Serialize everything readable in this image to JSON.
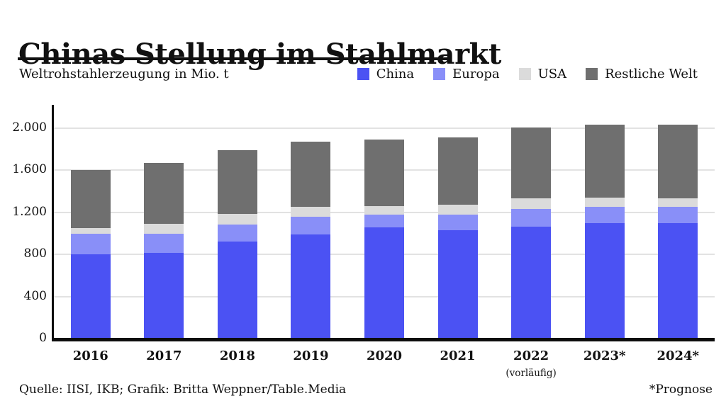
{
  "header": {
    "title": "Chinas Stellung im Stahlmarkt",
    "subtitle": "Weltrohstahlerzeugung in Mio. t"
  },
  "legend": [
    {
      "label": "China",
      "color": "#4b52f3"
    },
    {
      "label": "Europa",
      "color": "#898ff8"
    },
    {
      "label": "USA",
      "color": "#dbdbdb"
    },
    {
      "label": "Restliche Welt",
      "color": "#6f6f6f"
    }
  ],
  "footer": {
    "source": "Quelle: IISI, IKB; Grafik: Britta Weppner/Table.Media",
    "note": "*Prognose"
  },
  "chart_data": {
    "type": "bar",
    "stacked": true,
    "title": "Chinas Stellung im Stahlmarkt",
    "subtitle": "Weltrohstahlerzeugung in Mio. t",
    "unit": "Mio. t",
    "categories": [
      "2016",
      "2017",
      "2018",
      "2019",
      "2020",
      "2021",
      "2022",
      "2023*",
      "2024*"
    ],
    "category_sublabels": {
      "2022": "(vorläufig)"
    },
    "series": [
      {
        "name": "China",
        "color": "#4b52f3",
        "values": [
          800,
          815,
          925,
          990,
          1055,
          1030,
          1065,
          1100,
          1100
        ]
      },
      {
        "name": "Europa",
        "color": "#898ff8",
        "values": [
          195,
          180,
          160,
          165,
          125,
          150,
          165,
          150,
          155
        ]
      },
      {
        "name": "USA",
        "color": "#dbdbdb",
        "values": [
          55,
          95,
          100,
          95,
          80,
          90,
          105,
          90,
          75
        ]
      },
      {
        "name": "Restliche Welt",
        "color": "#6f6f6f",
        "values": [
          550,
          580,
          605,
          625,
          630,
          640,
          670,
          695,
          705
        ]
      }
    ],
    "totals": [
      1600,
      1670,
      1790,
      1875,
      1890,
      1910,
      2005,
      2035,
      2035
    ],
    "yticks": [
      {
        "v": 0,
        "label": "0"
      },
      {
        "v": 400,
        "label": "400"
      },
      {
        "v": 800,
        "label": "800"
      },
      {
        "v": 1200,
        "label": "1.200"
      },
      {
        "v": 1600,
        "label": "1.600"
      },
      {
        "v": 2000,
        "label": "2.000"
      }
    ],
    "ylim": [
      0,
      2210
    ],
    "grid": true,
    "legend_position": "top-right",
    "footnote": "*Prognose"
  }
}
